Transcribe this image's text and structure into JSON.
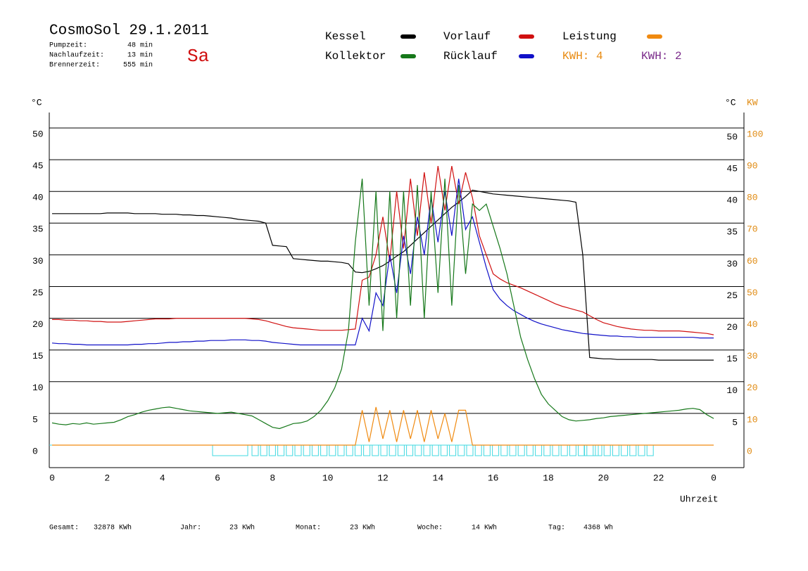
{
  "chart_data": {
    "type": "line",
    "title": "CosmoSol 29.1.2011",
    "day": "Sa",
    "info": [
      [
        "Pumpzeit:",
        "48 min"
      ],
      [
        "Nachlaufzeit:",
        "13 min"
      ],
      [
        "Brennerzeit:",
        "555 min"
      ]
    ],
    "y_label": "°C",
    "y2_label_c": "°C",
    "y2_label": "KW",
    "x_label": "Uhrzeit",
    "kwh_labels": [
      {
        "text": "KWH: 4",
        "color": "#e88a10"
      },
      {
        "text": "KWH: 2",
        "color": "#7a2a8a"
      }
    ],
    "footer": [
      [
        "Gesamt:",
        "32878 KWh"
      ],
      [
        "Jahr:",
        "23 KWh"
      ],
      [
        "Monat:",
        "23 KWh"
      ],
      [
        "Woche:",
        "14 KWh"
      ],
      [
        "Tag:",
        "4368 Wh"
      ]
    ],
    "xlim": [
      0,
      24
    ],
    "xticks": [
      0,
      2,
      4,
      6,
      8,
      10,
      12,
      14,
      16,
      18,
      20,
      22,
      {
        "value": 24,
        "label": "0"
      }
    ],
    "ylim": [
      0,
      50
    ],
    "yticks": [
      0,
      5,
      10,
      15,
      20,
      25,
      30,
      35,
      40,
      45,
      50
    ],
    "y2lim": [
      0,
      100
    ],
    "y2ticks": [
      0,
      10,
      20,
      30,
      40,
      50,
      60,
      70,
      80,
      90,
      100
    ],
    "grid": true,
    "x": [
      0,
      0.25,
      0.5,
      0.75,
      1,
      1.25,
      1.5,
      1.75,
      2,
      2.25,
      2.5,
      2.75,
      3,
      3.25,
      3.5,
      3.75,
      4,
      4.25,
      4.5,
      4.75,
      5,
      5.25,
      5.5,
      5.75,
      6,
      6.25,
      6.5,
      6.75,
      7,
      7.25,
      7.5,
      7.75,
      8,
      8.25,
      8.5,
      8.75,
      9,
      9.25,
      9.5,
      9.75,
      10,
      10.25,
      10.5,
      10.75,
      11,
      11.25,
      11.5,
      11.75,
      12,
      12.25,
      12.5,
      12.75,
      13,
      13.25,
      13.5,
      13.75,
      14,
      14.25,
      14.5,
      14.75,
      15,
      15.25,
      15.5,
      15.75,
      16,
      16.25,
      16.5,
      16.75,
      17,
      17.25,
      17.5,
      17.75,
      18,
      18.25,
      18.5,
      18.75,
      19,
      19.25,
      19.5,
      19.75,
      20,
      20.25,
      20.5,
      20.75,
      21,
      21.25,
      21.5,
      21.75,
      22,
      22.25,
      22.5,
      22.75,
      23,
      23.25,
      23.5,
      23.75,
      24
    ],
    "series": [
      {
        "name": "Kessel",
        "color": "#000000",
        "values": [
          36.5,
          36.5,
          36.5,
          36.5,
          36.5,
          36.5,
          36.5,
          36.5,
          36.6,
          36.6,
          36.6,
          36.6,
          36.5,
          36.5,
          36.5,
          36.5,
          36.4,
          36.4,
          36.4,
          36.3,
          36.3,
          36.2,
          36.2,
          36.1,
          36.0,
          35.9,
          35.8,
          35.6,
          35.5,
          35.4,
          35.3,
          35.0,
          31.5,
          31.4,
          31.3,
          29.4,
          29.3,
          29.2,
          29.1,
          29.0,
          29.0,
          28.9,
          28.8,
          28.6,
          27.3,
          27.2,
          27.4,
          27.8,
          28.3,
          29.0,
          29.8,
          30.5,
          31.5,
          32.5,
          33.5,
          34.5,
          35.5,
          36.5,
          37.5,
          38.3,
          39.2,
          40.2,
          40.0,
          39.8,
          39.6,
          39.5,
          39.4,
          39.3,
          39.2,
          39.1,
          39.0,
          38.9,
          38.8,
          38.7,
          38.6,
          38.5,
          38.3,
          30.0,
          13.8,
          13.7,
          13.6,
          13.6,
          13.5,
          13.5,
          13.5,
          13.5,
          13.5,
          13.5,
          13.4,
          13.4,
          13.4,
          13.4,
          13.4,
          13.4,
          13.4,
          13.4,
          13.4
        ]
      },
      {
        "name": "Kollektor",
        "color": "#16781a",
        "values": [
          3.5,
          3.3,
          3.2,
          3.4,
          3.3,
          3.5,
          3.3,
          3.4,
          3.5,
          3.6,
          4.0,
          4.5,
          4.8,
          5.2,
          5.5,
          5.7,
          5.9,
          6.0,
          5.8,
          5.6,
          5.4,
          5.3,
          5.2,
          5.1,
          5.0,
          5.1,
          5.2,
          5.0,
          4.8,
          4.6,
          4.0,
          3.4,
          2.8,
          2.6,
          3.0,
          3.4,
          3.5,
          3.8,
          4.5,
          5.5,
          7.0,
          9.0,
          12.0,
          18.0,
          32.0,
          42.0,
          22.0,
          40.0,
          18,
          40,
          20,
          40,
          22,
          41,
          20,
          40,
          24,
          42,
          22,
          41,
          27,
          38,
          37,
          38,
          34.5,
          31.0,
          27.0,
          22.0,
          17.0,
          13.5,
          10.5,
          8.0,
          6.5,
          5.5,
          4.5,
          4.0,
          3.8,
          3.9,
          4.0,
          4.2,
          4.3,
          4.5,
          4.6,
          4.7,
          4.8,
          4.9,
          5.0,
          5.1,
          5.2,
          5.3,
          5.4,
          5.5,
          5.7,
          5.8,
          5.6,
          4.8,
          4.2
        ]
      },
      {
        "name": "Vorlauf",
        "color": "#d01010",
        "values": [
          19.8,
          19.8,
          19.7,
          19.7,
          19.6,
          19.6,
          19.5,
          19.5,
          19.4,
          19.4,
          19.4,
          19.5,
          19.6,
          19.7,
          19.8,
          19.9,
          19.9,
          19.9,
          20.0,
          20.0,
          20.0,
          20.0,
          20.0,
          20.0,
          20.0,
          20.0,
          20.0,
          20.0,
          20.0,
          19.9,
          19.8,
          19.6,
          19.3,
          19.0,
          18.7,
          18.5,
          18.4,
          18.3,
          18.2,
          18.1,
          18.1,
          18.1,
          18.1,
          18.2,
          18.3,
          26.0,
          26.5,
          30.0,
          36,
          29,
          40,
          31,
          42,
          33,
          43,
          35,
          44,
          37,
          44,
          38,
          43,
          39,
          33,
          30,
          27.0,
          26.2,
          25.6,
          25.2,
          24.8,
          24.3,
          23.8,
          23.3,
          22.8,
          22.3,
          21.9,
          21.6,
          21.3,
          21.0,
          20.4,
          19.8,
          19.3,
          19.0,
          18.7,
          18.5,
          18.3,
          18.2,
          18.1,
          18.1,
          18.0,
          18.0,
          18.0,
          18.0,
          17.9,
          17.8,
          17.7,
          17.6,
          17.4
        ]
      },
      {
        "name": "Rücklauf",
        "color": "#1010c8",
        "values": [
          16.1,
          16.0,
          16.0,
          15.9,
          15.9,
          15.8,
          15.8,
          15.8,
          15.8,
          15.8,
          15.8,
          15.8,
          15.9,
          15.9,
          16.0,
          16.0,
          16.1,
          16.2,
          16.2,
          16.3,
          16.3,
          16.4,
          16.4,
          16.5,
          16.5,
          16.5,
          16.6,
          16.6,
          16.6,
          16.5,
          16.5,
          16.4,
          16.2,
          16.1,
          16.0,
          15.9,
          15.8,
          15.8,
          15.8,
          15.8,
          15.8,
          15.8,
          15.8,
          15.8,
          15.8,
          20.0,
          18.0,
          24.0,
          22,
          30,
          24,
          33,
          27,
          36,
          30,
          39,
          32,
          40,
          33,
          42,
          34,
          36,
          32,
          28,
          24.5,
          23.0,
          22.0,
          21.2,
          20.6,
          20.0,
          19.5,
          19.1,
          18.8,
          18.5,
          18.2,
          18.0,
          17.8,
          17.6,
          17.5,
          17.4,
          17.3,
          17.2,
          17.2,
          17.1,
          17.1,
          17.0,
          17.0,
          17.0,
          17.0,
          17.0,
          17.0,
          17.0,
          17.0,
          17.0,
          16.9,
          16.9,
          16.9
        ]
      },
      {
        "name": "Leistung",
        "color": "#f08a10",
        "axis": "y2",
        "values": [
          0,
          0,
          0,
          0,
          0,
          0,
          0,
          0,
          0,
          0,
          0,
          0,
          0,
          0,
          0,
          0,
          0,
          0,
          0,
          0,
          0,
          0,
          0,
          0,
          0,
          0,
          0,
          0,
          0,
          0,
          0,
          0,
          0,
          0,
          0,
          0,
          0,
          0,
          0,
          0,
          0,
          0,
          0,
          0,
          0,
          11,
          1,
          12,
          2,
          11,
          1,
          11,
          2,
          11,
          1,
          11,
          2,
          10,
          1,
          11,
          11,
          0,
          0,
          0,
          0,
          0,
          0,
          0,
          0,
          0,
          0,
          0,
          0,
          0,
          0,
          0,
          0,
          0,
          0,
          0,
          0,
          0,
          0,
          0,
          0,
          0,
          0,
          0,
          0,
          0,
          0,
          0,
          0,
          0,
          0,
          0,
          0
        ]
      }
    ]
  }
}
